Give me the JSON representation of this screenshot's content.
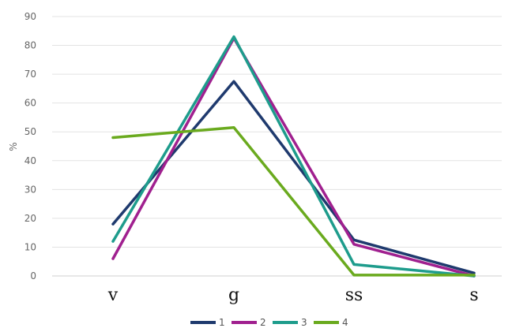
{
  "chart_data": {
    "type": "line",
    "title": "",
    "xlabel": "",
    "ylabel": "%",
    "categories": [
      "v",
      "g",
      "ss",
      "s"
    ],
    "ylim": [
      0,
      90
    ],
    "yticks": [
      0,
      10,
      20,
      30,
      40,
      50,
      60,
      70,
      80,
      90
    ],
    "grid": true,
    "legend_position": "bottom",
    "series": [
      {
        "name": "1",
        "color": "#1f3a6e",
        "values": [
          18,
          67.5,
          12.5,
          1
        ]
      },
      {
        "name": "2",
        "color": "#a0208f",
        "values": [
          6,
          82.5,
          11,
          0
        ]
      },
      {
        "name": "3",
        "color": "#1e9c8c",
        "values": [
          12,
          83,
          4,
          0
        ]
      },
      {
        "name": "4",
        "color": "#6aaa1e",
        "values": [
          48,
          51.5,
          0.3,
          0.3
        ]
      }
    ]
  }
}
